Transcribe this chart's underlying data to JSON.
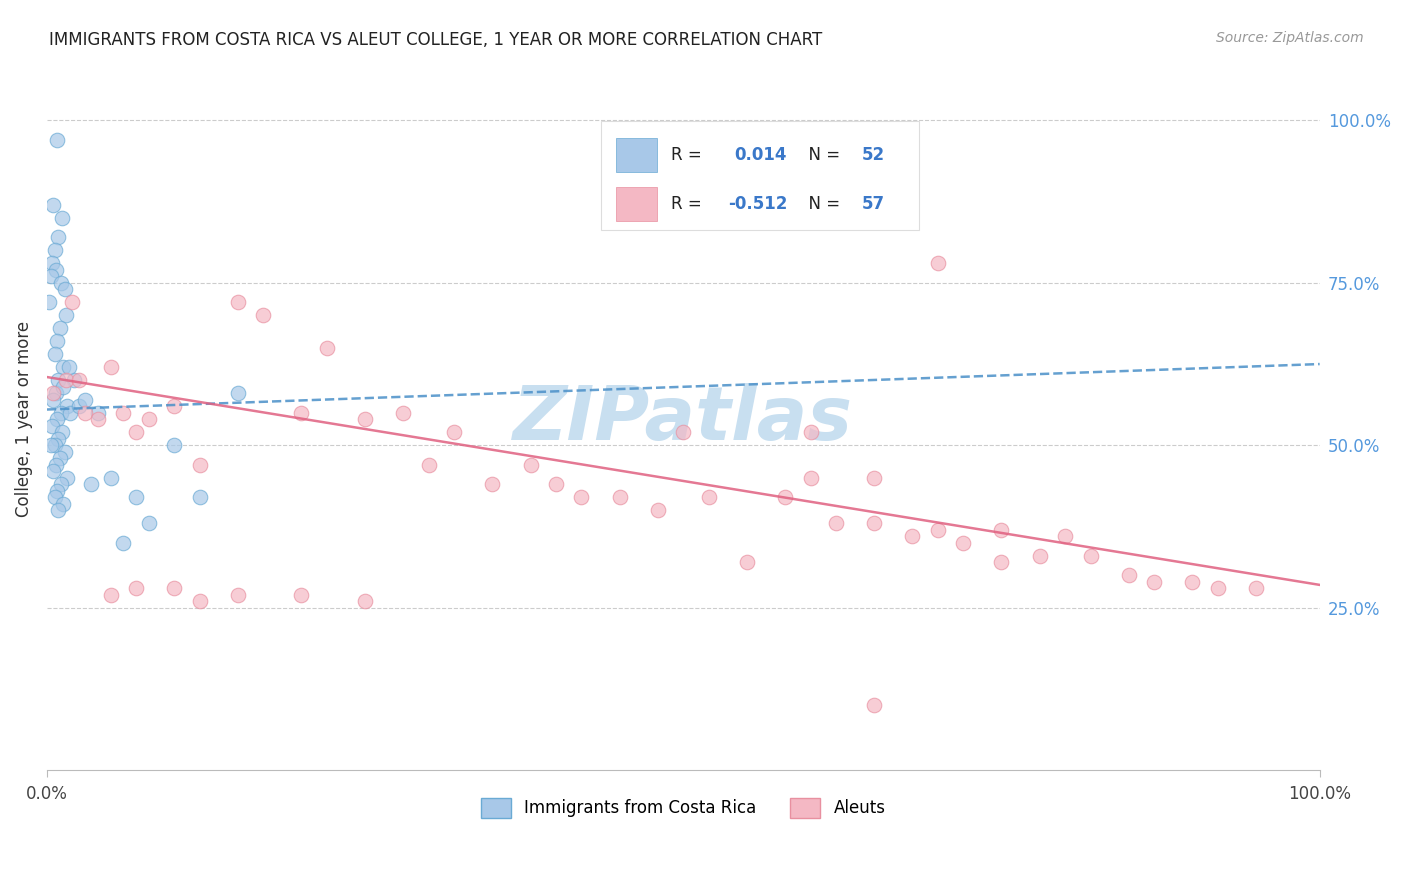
{
  "title": "IMMIGRANTS FROM COSTA RICA VS ALEUT COLLEGE, 1 YEAR OR MORE CORRELATION CHART",
  "source": "Source: ZipAtlas.com",
  "ylabel": "College, 1 year or more",
  "blue_color": "#a8c8e8",
  "blue_edge_color": "#6aaad4",
  "pink_color": "#f4b8c4",
  "pink_edge_color": "#e890a0",
  "blue_line_color": "#4a90c8",
  "pink_line_color": "#e06080",
  "text_color_dark": "#222222",
  "text_color_blue": "#3a78c9",
  "text_color_gray": "#999999",
  "right_axis_color": "#5599dd",
  "grid_color": "#cccccc",
  "watermark_color": "#c8dff0",
  "legend_R1": "R =  0.014",
  "legend_N1": "N = 52",
  "legend_R2": "R = -0.512",
  "legend_N2": "N = 57",
  "legend_label_blue": "Immigrants from Costa Rica",
  "legend_label_pink": "Aleuts",
  "ytick_vals": [
    0.25,
    0.5,
    0.75,
    1.0
  ],
  "ytick_labels": [
    "25.0%",
    "50.0%",
    "75.0%",
    "100.0%"
  ],
  "xtick_vals": [
    0.0,
    1.0
  ],
  "xtick_labels": [
    "0.0%",
    "100.0%"
  ],
  "xlim": [
    0.0,
    1.0
  ],
  "ylim": [
    0.0,
    1.08
  ],
  "blue_x": [
    0.008,
    0.005,
    0.012,
    0.009,
    0.006,
    0.004,
    0.007,
    0.003,
    0.011,
    0.014,
    0.002,
    0.015,
    0.01,
    0.008,
    0.006,
    0.013,
    0.009,
    0.007,
    0.005,
    0.016,
    0.011,
    0.008,
    0.004,
    0.012,
    0.009,
    0.006,
    0.003,
    0.014,
    0.01,
    0.007,
    0.005,
    0.016,
    0.011,
    0.008,
    0.006,
    0.013,
    0.009,
    0.018,
    0.021,
    0.025,
    0.03,
    0.035,
    0.04,
    0.05,
    0.06,
    0.07,
    0.08,
    0.1,
    0.12,
    0.15,
    0.013,
    0.017
  ],
  "blue_y": [
    0.97,
    0.87,
    0.85,
    0.82,
    0.8,
    0.78,
    0.77,
    0.76,
    0.75,
    0.74,
    0.72,
    0.7,
    0.68,
    0.66,
    0.64,
    0.62,
    0.6,
    0.58,
    0.57,
    0.56,
    0.55,
    0.54,
    0.53,
    0.52,
    0.51,
    0.5,
    0.5,
    0.49,
    0.48,
    0.47,
    0.46,
    0.45,
    0.44,
    0.43,
    0.42,
    0.41,
    0.4,
    0.55,
    0.6,
    0.56,
    0.57,
    0.44,
    0.55,
    0.45,
    0.35,
    0.42,
    0.38,
    0.5,
    0.42,
    0.58,
    0.59,
    0.62
  ],
  "pink_x": [
    0.005,
    0.015,
    0.02,
    0.025,
    0.03,
    0.04,
    0.05,
    0.06,
    0.07,
    0.08,
    0.1,
    0.12,
    0.15,
    0.17,
    0.2,
    0.22,
    0.25,
    0.28,
    0.3,
    0.32,
    0.35,
    0.38,
    0.4,
    0.42,
    0.45,
    0.48,
    0.5,
    0.52,
    0.55,
    0.58,
    0.6,
    0.62,
    0.65,
    0.68,
    0.7,
    0.72,
    0.75,
    0.78,
    0.8,
    0.82,
    0.85,
    0.87,
    0.9,
    0.92,
    0.95,
    0.15,
    0.2,
    0.25,
    0.05,
    0.07,
    0.1,
    0.12,
    0.6,
    0.65,
    0.7,
    0.75,
    0.65
  ],
  "pink_y": [
    0.58,
    0.6,
    0.72,
    0.6,
    0.55,
    0.54,
    0.62,
    0.55,
    0.52,
    0.54,
    0.56,
    0.47,
    0.72,
    0.7,
    0.55,
    0.65,
    0.54,
    0.55,
    0.47,
    0.52,
    0.44,
    0.47,
    0.44,
    0.42,
    0.42,
    0.4,
    0.52,
    0.42,
    0.32,
    0.42,
    0.45,
    0.38,
    0.38,
    0.36,
    0.78,
    0.35,
    0.37,
    0.33,
    0.36,
    0.33,
    0.3,
    0.29,
    0.29,
    0.28,
    0.28,
    0.27,
    0.27,
    0.26,
    0.27,
    0.28,
    0.28,
    0.26,
    0.52,
    0.45,
    0.37,
    0.32,
    0.1
  ],
  "blue_trend_x": [
    0.0,
    1.0
  ],
  "blue_trend_y": [
    0.555,
    0.625
  ],
  "pink_trend_x": [
    0.0,
    1.0
  ],
  "pink_trend_y": [
    0.605,
    0.285
  ]
}
